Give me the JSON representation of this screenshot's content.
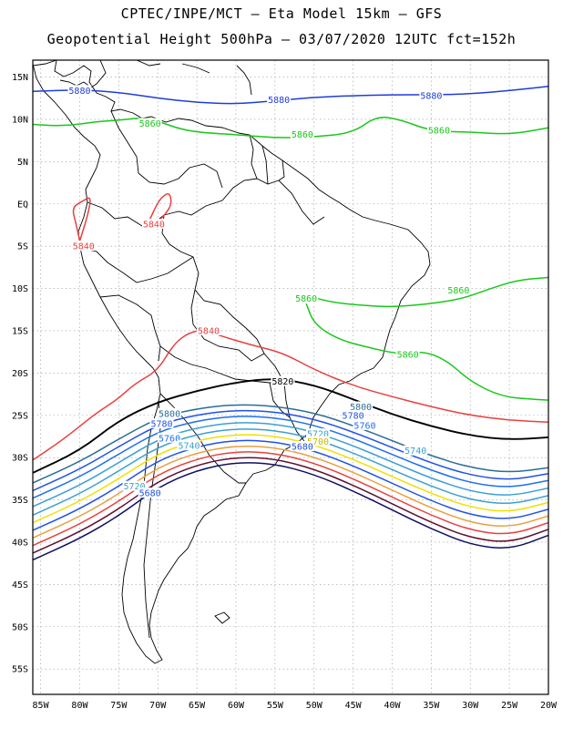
{
  "header": {
    "line1": "CPTEC/INPE/MCT  –  Eta Model 15km – GFS",
    "line2": "Geopotential Height 500hPa – 03/07/2020 12UTC fct=152h"
  },
  "axes": {
    "lat_labels": [
      "15N",
      "10N",
      "5N",
      "EQ",
      "5S",
      "10S",
      "15S",
      "20S",
      "25S",
      "30S",
      "35S",
      "40S",
      "45S",
      "50S",
      "55S"
    ],
    "lat_values": [
      15,
      10,
      5,
      0,
      -5,
      -10,
      -15,
      -20,
      -25,
      -30,
      -35,
      -40,
      -45,
      -50,
      -55
    ],
    "lon_labels": [
      "85W",
      "80W",
      "75W",
      "70W",
      "65W",
      "60W",
      "55W",
      "50W",
      "45W",
      "40W",
      "35W",
      "30W",
      "25W",
      "20W"
    ],
    "lon_values": [
      -85,
      -80,
      -75,
      -70,
      -65,
      -60,
      -55,
      -50,
      -45,
      -40,
      -35,
      -30,
      -25,
      -20
    ],
    "lon_range": [
      -86,
      -20
    ],
    "lat_range": [
      -58,
      17
    ],
    "grid": "dotted"
  },
  "contours": [
    {
      "level": "5880",
      "color": "#1e3cdc",
      "labels": [
        {
          "text": "5880",
          "lon": -80,
          "lat": 13.4
        },
        {
          "text": "5880",
          "lon": -54.5,
          "lat": 12.3
        },
        {
          "text": "5880",
          "lon": -35,
          "lat": 12.8
        }
      ]
    },
    {
      "level": "5860",
      "color": "#18c818",
      "labels": [
        {
          "text": "5860",
          "lon": -71,
          "lat": 9.5
        },
        {
          "text": "5860",
          "lon": -51.5,
          "lat": 8.2
        },
        {
          "text": "5860",
          "lon": -34,
          "lat": 8.7
        },
        {
          "text": "5860",
          "lon": -51,
          "lat": -11.2
        },
        {
          "text": "5860",
          "lon": -31.5,
          "lat": -10.2
        },
        {
          "text": "5860",
          "lon": -38,
          "lat": -17.8
        }
      ]
    },
    {
      "level": "5840",
      "color": "#e84040",
      "labels": [
        {
          "text": "5840",
          "lon": -79.5,
          "lat": -5
        },
        {
          "text": "5840",
          "lon": -70.5,
          "lat": -2.4
        },
        {
          "text": "5840",
          "lon": -63.5,
          "lat": -15
        }
      ]
    },
    {
      "level": "5820",
      "color": "#000000",
      "labels": [
        {
          "text": "5820",
          "lon": -54,
          "lat": -21
        }
      ]
    },
    {
      "level": "5800",
      "color": "#2a6e96",
      "labels": [
        {
          "text": "5800",
          "lon": -68.5,
          "lat": -24.8
        },
        {
          "text": "5800",
          "lon": -44,
          "lat": -24
        }
      ]
    },
    {
      "level": "5780",
      "color": "#2050e8",
      "labels": [
        {
          "text": "5780",
          "lon": -69.5,
          "lat": -26
        },
        {
          "text": "5780",
          "lon": -45,
          "lat": -25
        }
      ]
    },
    {
      "level": "5760",
      "color": "#1e6ef0",
      "labels": [
        {
          "text": "5760",
          "lon": -68.5,
          "lat": -27.7
        },
        {
          "text": "5760",
          "lon": -43.5,
          "lat": -26.2
        }
      ]
    },
    {
      "level": "5740",
      "color": "#3ca0d2",
      "labels": [
        {
          "text": "5740",
          "lon": -66,
          "lat": -28.6
        },
        {
          "text": "5740",
          "lon": -37,
          "lat": -29.2
        }
      ]
    },
    {
      "level": "5720",
      "color": "#3ca0d2",
      "labels": [
        {
          "text": "5720",
          "lon": -73,
          "lat": -33.4
        },
        {
          "text": "5720",
          "lon": -49.5,
          "lat": -27.2
        }
      ]
    },
    {
      "level": "5700",
      "color": "#f0e000",
      "labels": [
        {
          "text": "5700",
          "lon": -49.5,
          "lat": -28.1
        }
      ]
    },
    {
      "level": "5680",
      "color": "#2050e8",
      "labels": [
        {
          "text": "5680",
          "lon": -71,
          "lat": -34.2
        },
        {
          "text": "5680",
          "lon": -51.5,
          "lat": -28.7
        }
      ]
    }
  ]
}
